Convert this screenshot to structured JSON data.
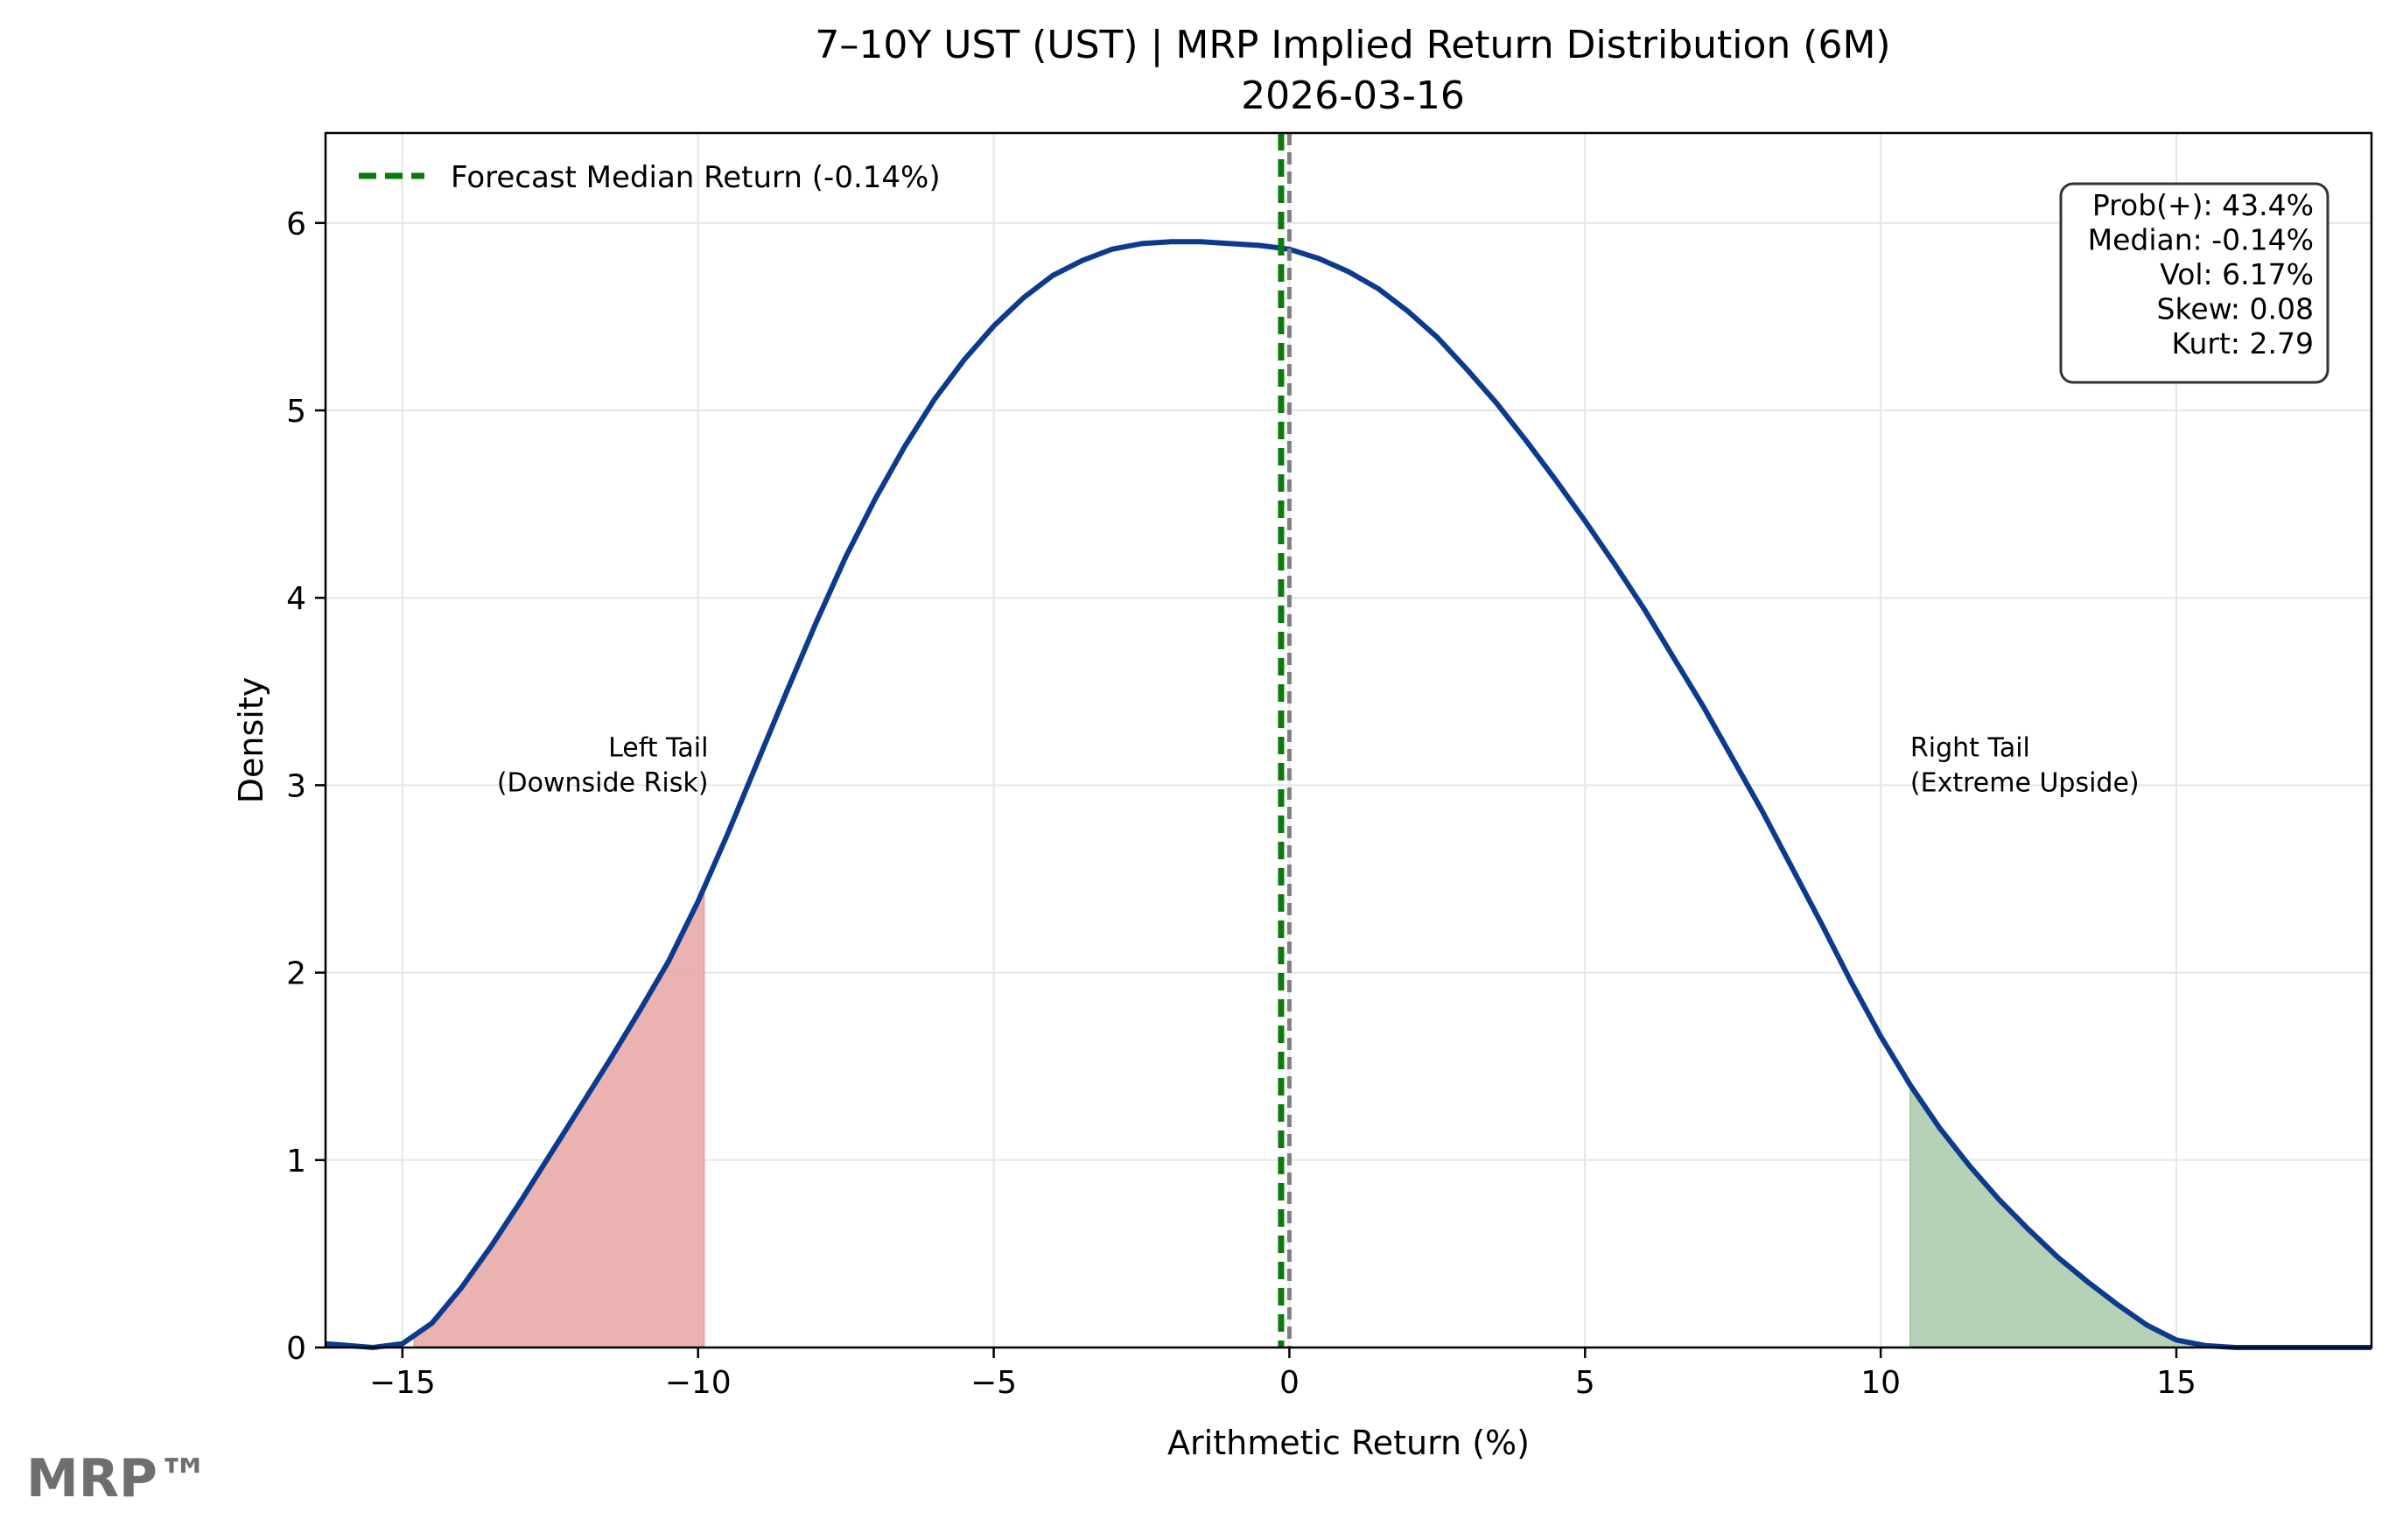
{
  "chart_data": {
    "type": "area",
    "title": "7–10Y UST (UST) | MRP Implied Return Distribution (6M)",
    "subtitle": "2026-03-16",
    "xlabel": "Arithmetic Return (%)",
    "ylabel": "Density",
    "xlim": [
      -16.3,
      18.3
    ],
    "ylim": [
      0,
      6.48
    ],
    "xticks": [
      -15,
      -10,
      -5,
      0,
      5,
      10,
      15
    ],
    "yticks": [
      0,
      1,
      2,
      3,
      4,
      5,
      6
    ],
    "xtick_labels": [
      "−15",
      "−10",
      "−5",
      "0",
      "5",
      "10",
      "15"
    ],
    "ytick_labels": [
      "0",
      "1",
      "2",
      "3",
      "4",
      "5",
      "6"
    ],
    "grid": true,
    "legend_position": "top-left",
    "series": [
      {
        "name": "",
        "color": "#0c3a8c",
        "x": [
          -16.3,
          -15.5,
          -15.0,
          -14.5,
          -14.0,
          -13.5,
          -13.0,
          -12.5,
          -12.0,
          -11.5,
          -11.0,
          -10.5,
          -10.0,
          -9.5,
          -9.0,
          -8.5,
          -8.0,
          -7.5,
          -7.0,
          -6.5,
          -6.0,
          -5.5,
          -5.0,
          -4.5,
          -4.0,
          -3.5,
          -3.0,
          -2.5,
          -2.0,
          -1.5,
          -1.0,
          -0.5,
          0.0,
          0.5,
          1.0,
          1.5,
          2.0,
          2.5,
          3.0,
          3.5,
          4.0,
          4.5,
          5.0,
          5.5,
          6.0,
          6.5,
          7.0,
          7.5,
          8.0,
          8.5,
          9.0,
          9.5,
          10.0,
          10.5,
          11.0,
          11.5,
          12.0,
          12.5,
          13.0,
          13.5,
          14.0,
          14.5,
          15.0,
          15.5,
          16.0,
          16.5,
          17.0,
          17.5,
          18.3
        ],
        "y": [
          0.02,
          0.0,
          0.02,
          0.13,
          0.32,
          0.54,
          0.78,
          1.03,
          1.28,
          1.53,
          1.79,
          2.06,
          2.38,
          2.74,
          3.12,
          3.5,
          3.87,
          4.22,
          4.53,
          4.81,
          5.06,
          5.27,
          5.45,
          5.6,
          5.72,
          5.8,
          5.86,
          5.89,
          5.9,
          5.9,
          5.89,
          5.88,
          5.86,
          5.81,
          5.74,
          5.65,
          5.53,
          5.39,
          5.22,
          5.04,
          4.84,
          4.63,
          4.41,
          4.18,
          3.94,
          3.68,
          3.42,
          3.14,
          2.86,
          2.56,
          2.26,
          1.95,
          1.66,
          1.4,
          1.17,
          0.97,
          0.79,
          0.63,
          0.48,
          0.35,
          0.23,
          0.12,
          0.04,
          0.01,
          0.0,
          0.0,
          0.0,
          0.0,
          0.0
        ]
      }
    ],
    "fill_regions": [
      {
        "from": -14.8,
        "to": -9.9,
        "color": "#e8a5a5"
      },
      {
        "from": 10.5,
        "to": 17.3,
        "color": "#a9c9a9"
      }
    ],
    "vlines": [
      {
        "x": -0.14,
        "color": "#0a7a0a",
        "style": "dashed",
        "label": "Forecast Median Return (-0.14%)"
      },
      {
        "x": 0.0,
        "color": "#808080",
        "style": "dashed",
        "label": ""
      }
    ],
    "annotations": [
      {
        "lines": [
          "Left Tail",
          "(Downside Risk)"
        ],
        "x": -9.9,
        "y": 3.05,
        "align": "right"
      },
      {
        "lines": [
          "Right Tail",
          "(Extreme Upside)"
        ],
        "x": 10.5,
        "y": 3.05,
        "align": "left"
      }
    ],
    "stats_box": [
      "Prob(+): 43.4%",
      "Median: -0.14%",
      "Vol: 6.17%",
      "Skew: 0.08",
      "Kurt: 2.79"
    ]
  },
  "watermark": "MRP™"
}
